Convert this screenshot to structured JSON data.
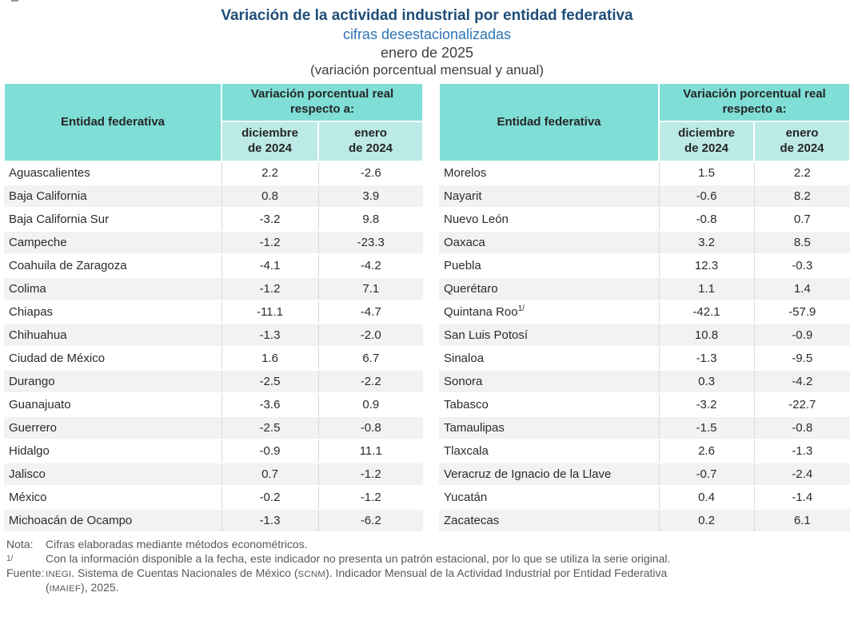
{
  "header": {
    "title": "Variación de la actividad industrial por entidad federativa",
    "subtitle": "cifras desestacionalizadas",
    "period": "enero de 2025",
    "units_note": "(variación porcentual mensual y anual)"
  },
  "table_header": {
    "entity_col": "Entidad federativa",
    "group_col_line1": "Variación porcentual real",
    "group_col_line2": "respecto a:",
    "col_december_line1": "diciembre",
    "col_december_line2": "de 2024",
    "col_january_line1": "enero",
    "col_january_line2": "de 2024"
  },
  "left_table": {
    "rows": [
      {
        "name": "Aguascalientes",
        "dec": "2.2",
        "jan": "-2.6"
      },
      {
        "name": "Baja California",
        "dec": "0.8",
        "jan": "3.9"
      },
      {
        "name": "Baja California Sur",
        "dec": "-3.2",
        "jan": "9.8"
      },
      {
        "name": "Campeche",
        "dec": "-1.2",
        "jan": "-23.3"
      },
      {
        "name": "Coahuila de Zaragoza",
        "dec": "-4.1",
        "jan": "-4.2"
      },
      {
        "name": "Colima",
        "dec": "-1.2",
        "jan": "7.1"
      },
      {
        "name": "Chiapas",
        "dec": "-11.1",
        "jan": "-4.7"
      },
      {
        "name": "Chihuahua",
        "dec": "-1.3",
        "jan": "-2.0"
      },
      {
        "name": "Ciudad de México",
        "dec": "1.6",
        "jan": "6.7"
      },
      {
        "name": "Durango",
        "dec": "-2.5",
        "jan": "-2.2"
      },
      {
        "name": "Guanajuato",
        "dec": "-3.6",
        "jan": "0.9"
      },
      {
        "name": "Guerrero",
        "dec": "-2.5",
        "jan": "-0.8"
      },
      {
        "name": "Hidalgo",
        "dec": "-0.9",
        "jan": "11.1"
      },
      {
        "name": "Jalisco",
        "dec": "0.7",
        "jan": "-1.2"
      },
      {
        "name": "México",
        "dec": "-0.2",
        "jan": "-1.2"
      },
      {
        "name": "Michoacán de Ocampo",
        "dec": "-1.3",
        "jan": "-6.2"
      }
    ]
  },
  "right_table": {
    "rows": [
      {
        "name": "Morelos",
        "dec": "1.5",
        "jan": "2.2"
      },
      {
        "name": "Nayarit",
        "dec": "-0.6",
        "jan": "8.2"
      },
      {
        "name": "Nuevo León",
        "dec": "-0.8",
        "jan": "0.7"
      },
      {
        "name": "Oaxaca",
        "dec": "3.2",
        "jan": "8.5"
      },
      {
        "name": "Puebla",
        "dec": "12.3",
        "jan": "-0.3"
      },
      {
        "name": "Querétaro",
        "dec": "1.1",
        "jan": "1.4"
      },
      {
        "name": "Quintana Roo",
        "sup": "1/",
        "dec": "-42.1",
        "jan": "-57.9"
      },
      {
        "name": "San Luis Potosí",
        "dec": "10.8",
        "jan": "-0.9"
      },
      {
        "name": "Sinaloa",
        "dec": "-1.3",
        "jan": "-9.5"
      },
      {
        "name": "Sonora",
        "dec": "0.3",
        "jan": "-4.2"
      },
      {
        "name": "Tabasco",
        "dec": "-3.2",
        "jan": "-22.7"
      },
      {
        "name": "Tamaulipas",
        "dec": "-1.5",
        "jan": "-0.8"
      },
      {
        "name": "Tlaxcala",
        "dec": "2.6",
        "jan": "-1.3"
      },
      {
        "name": "Veracruz de Ignacio de la Llave",
        "dec": "-0.7",
        "jan": "-2.4"
      },
      {
        "name": "Yucatán",
        "dec": "0.4",
        "jan": "-1.4"
      },
      {
        "name": "Zacatecas",
        "dec": "0.2",
        "jan": "6.1"
      }
    ]
  },
  "footnotes": {
    "nota_label": "Nota:",
    "nota_text": "Cifras elaboradas mediante métodos econométricos.",
    "ref_label": "1/",
    "ref_text": "Con la información disponible a la fecha, este indicador no presenta un patrón estacional, por lo que se utiliza la serie original.",
    "fuente_label": "Fuente:",
    "fuente_segments": [
      {
        "text": "INEGI",
        "caps": true
      },
      {
        "text": ". Sistema de Cuentas Nacionales de México ("
      },
      {
        "text": "SCNM",
        "caps": true
      },
      {
        "text": "). Indicador Mensual de la Actividad Industrial por Entidad Federativa"
      },
      {
        "br": true
      },
      {
        "text": "("
      },
      {
        "text": "IMAIEF",
        "caps": true
      },
      {
        "text": "), 2025."
      }
    ]
  },
  "colors": {
    "header_teal": "#7FDED6",
    "subheader_teal": "#BCEAE6",
    "row_stripe": "#F2F2F2",
    "title_navy": "#1F4E79",
    "subtitle_blue": "#2E74B5",
    "body_text": "#333333",
    "note_text": "#595959",
    "grid_line": "#D9D9D9"
  }
}
